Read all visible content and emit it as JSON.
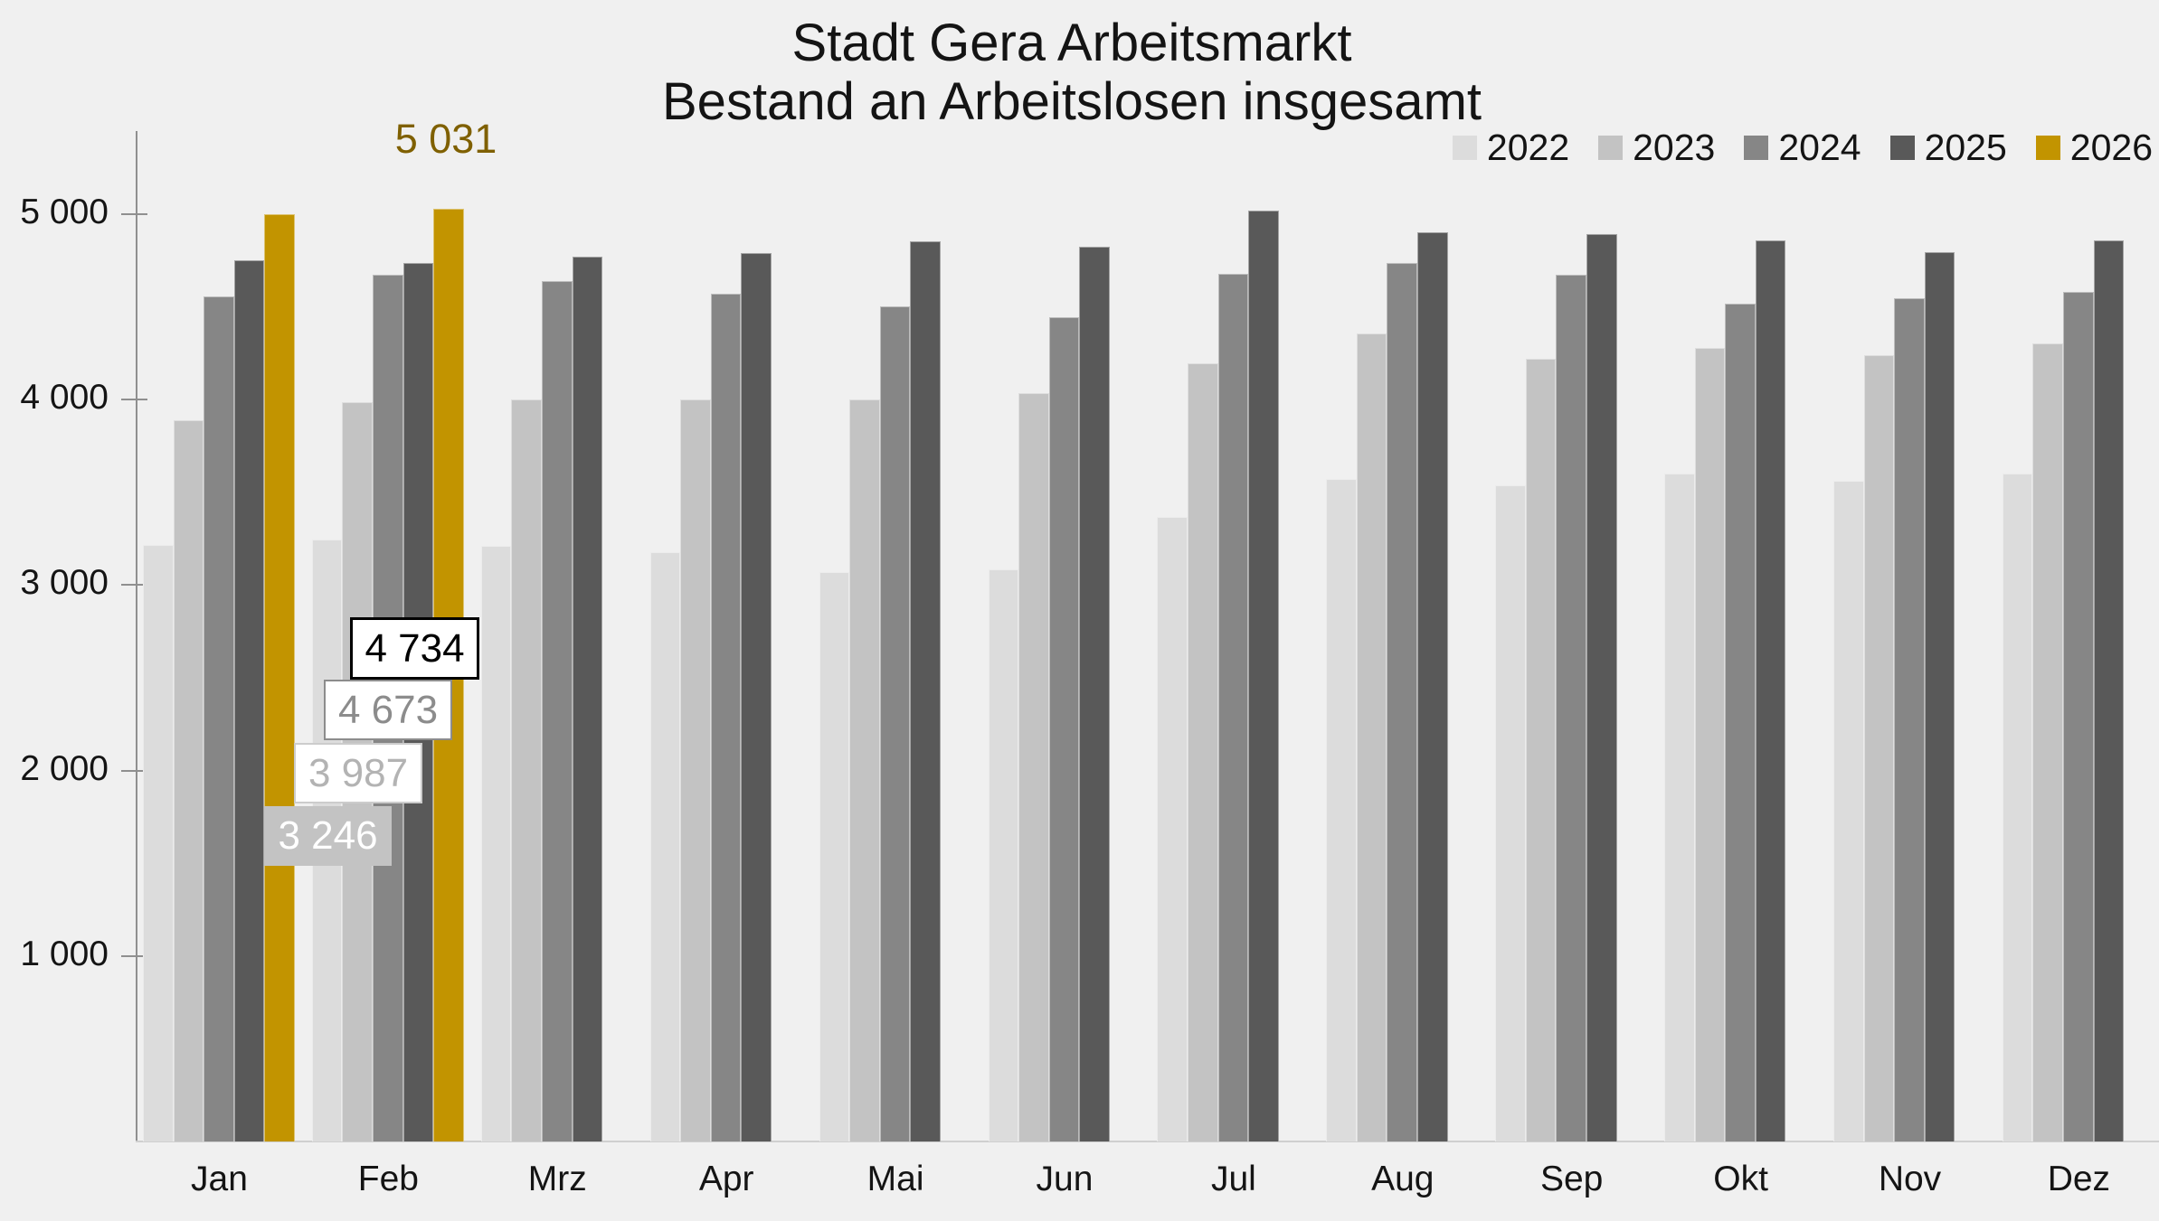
{
  "title": {
    "line1": "Stadt Gera Arbeitsmarkt",
    "line2": "Bestand an Arbeitslosen insgesamt"
  },
  "chart_data": {
    "type": "bar",
    "title": "Stadt Gera Arbeitsmarkt",
    "subtitle": "Bestand an Arbeitslosen insgesamt",
    "categories": [
      "Jan",
      "Feb",
      "Mrz",
      "Apr",
      "Mai",
      "Jun",
      "Jul",
      "Aug",
      "Sep",
      "Okt",
      "Nov",
      "Dez"
    ],
    "series": [
      {
        "name": "2022",
        "color": "#dcdcdc",
        "values": [
          3215,
          3246,
          3210,
          3175,
          3070,
          3085,
          3365,
          3570,
          3540,
          3600,
          3560,
          3600
        ]
      },
      {
        "name": "2023",
        "color": "#c3c3c3",
        "values": [
          3890,
          3987,
          4000,
          4000,
          4000,
          4035,
          4195,
          4355,
          4220,
          4280,
          4240,
          4305
        ]
      },
      {
        "name": "2024",
        "color": "#868686",
        "values": [
          4555,
          4673,
          4640,
          4570,
          4500,
          4445,
          4680,
          4735,
          4675,
          4515,
          4545,
          4580
        ]
      },
      {
        "name": "2025",
        "color": "#595959",
        "values": [
          4750,
          4734,
          4770,
          4790,
          4855,
          4825,
          5020,
          4900,
          4890,
          4860,
          4795,
          4860
        ]
      },
      {
        "name": "2026",
        "color": "#c29400",
        "values": [
          5000,
          5031,
          null,
          null,
          null,
          null,
          null,
          null,
          null,
          null,
          null,
          null
        ]
      }
    ],
    "ylim": [
      0,
      5400
    ],
    "yticks": [
      {
        "value": 1000,
        "label": "1 000"
      },
      {
        "value": 2000,
        "label": "2 000"
      },
      {
        "value": 3000,
        "label": "3 000"
      },
      {
        "value": 4000,
        "label": "4 000"
      },
      {
        "value": 5000,
        "label": "5 000"
      }
    ],
    "grid": false,
    "legend_position": "top-right",
    "annotations": [
      {
        "text": "5 031",
        "series": "2026",
        "month": "Feb",
        "style": "gold-text"
      },
      {
        "text": "4 734",
        "series": "2025",
        "month": "Feb",
        "style": "box-black"
      },
      {
        "text": "4 673",
        "series": "2024",
        "month": "Feb",
        "style": "box-gray"
      },
      {
        "text": "3 987",
        "series": "2023",
        "month": "Feb",
        "style": "box-silver"
      },
      {
        "text": "3 246",
        "series": "2022",
        "month": "Feb",
        "style": "box-filled"
      }
    ]
  }
}
